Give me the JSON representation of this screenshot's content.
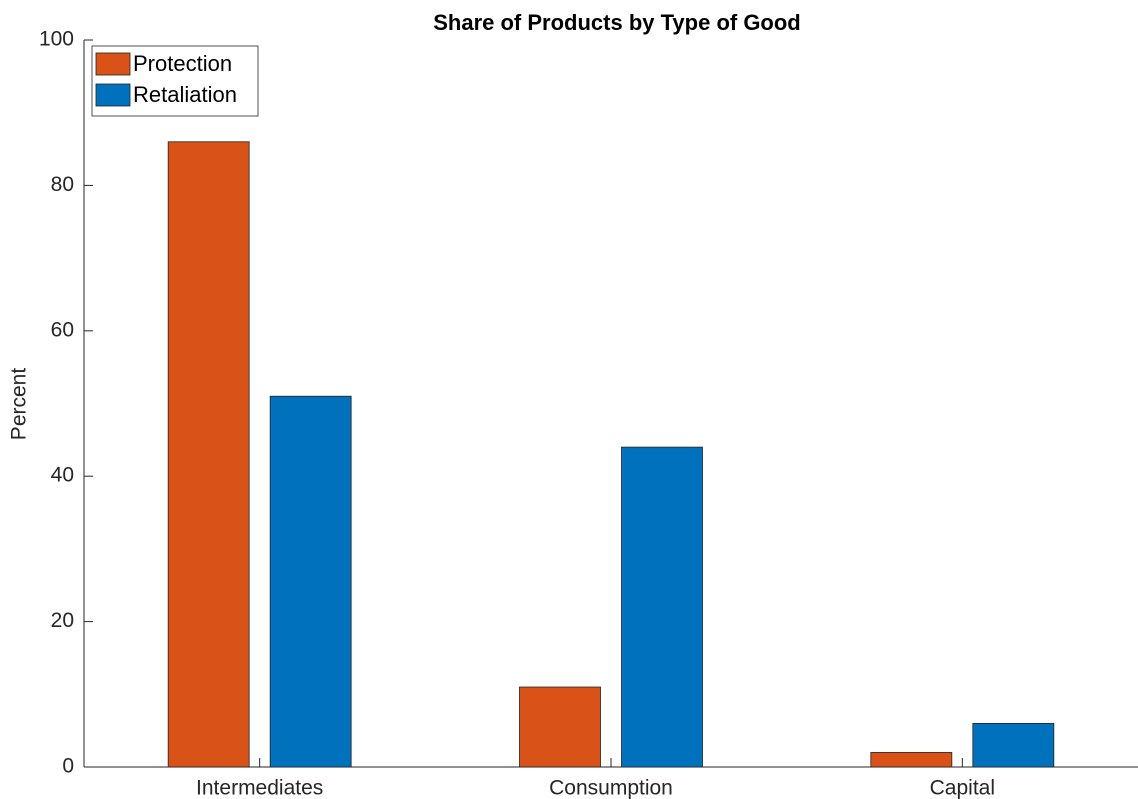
{
  "chart_data": {
    "type": "bar",
    "title": "Share of Products by Type of Good",
    "y_label": "Percent",
    "categories": [
      "Intermediates",
      "Consumption",
      "Capital"
    ],
    "series": [
      {
        "name": "Protection",
        "color": "#d95319",
        "values": [
          86,
          11,
          2
        ]
      },
      {
        "name": "Retaliation",
        "color": "#0072bd",
        "values": [
          51,
          44,
          6
        ]
      }
    ],
    "ylim": [
      0,
      100
    ],
    "yticks": [
      0,
      20,
      40,
      60,
      80,
      100
    ],
    "grid": false,
    "legend": "upper left"
  }
}
